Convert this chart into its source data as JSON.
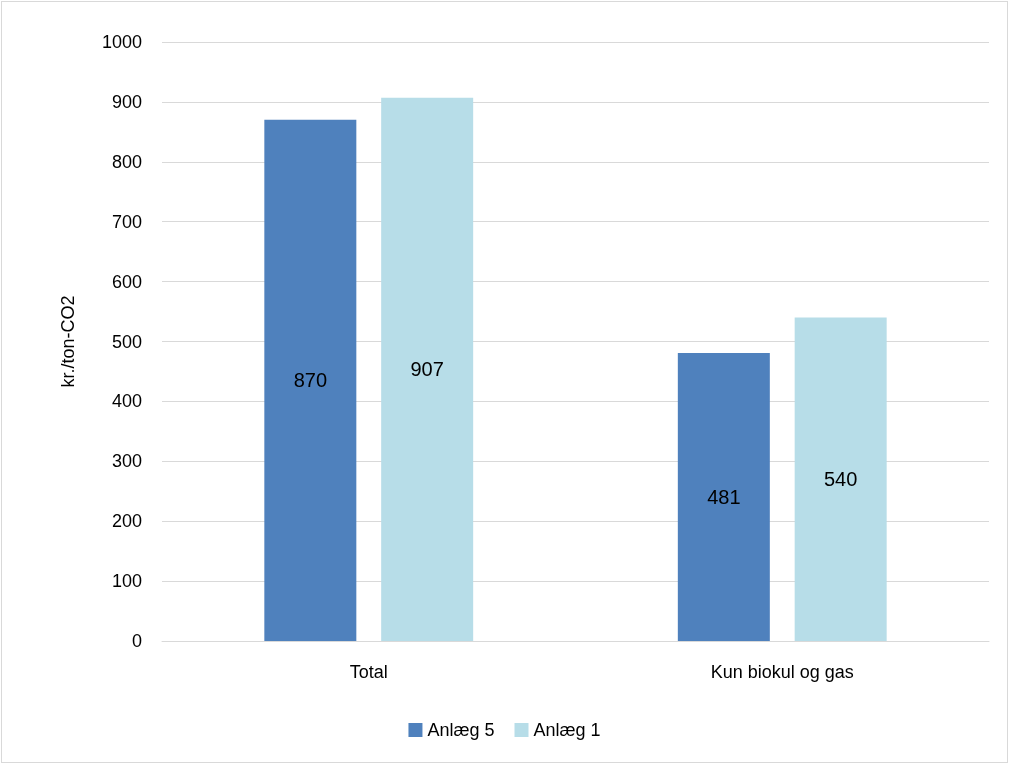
{
  "chart_data": {
    "type": "bar",
    "ylabel": "kr./ton-CO2",
    "categories": [
      "Total",
      "Kun biokul og gas"
    ],
    "series": [
      {
        "name": "Anlæg 5",
        "color": "#4f81bd",
        "values": [
          870,
          481
        ]
      },
      {
        "name": "Anlæg 1",
        "color": "#b7dde8",
        "values": [
          907,
          540
        ]
      }
    ],
    "ylim": [
      0,
      1000
    ],
    "yticks": [
      0,
      100,
      200,
      300,
      400,
      500,
      600,
      700,
      800,
      900,
      1000
    ],
    "grid": "y",
    "legend": "bottom",
    "data_labels": true
  }
}
